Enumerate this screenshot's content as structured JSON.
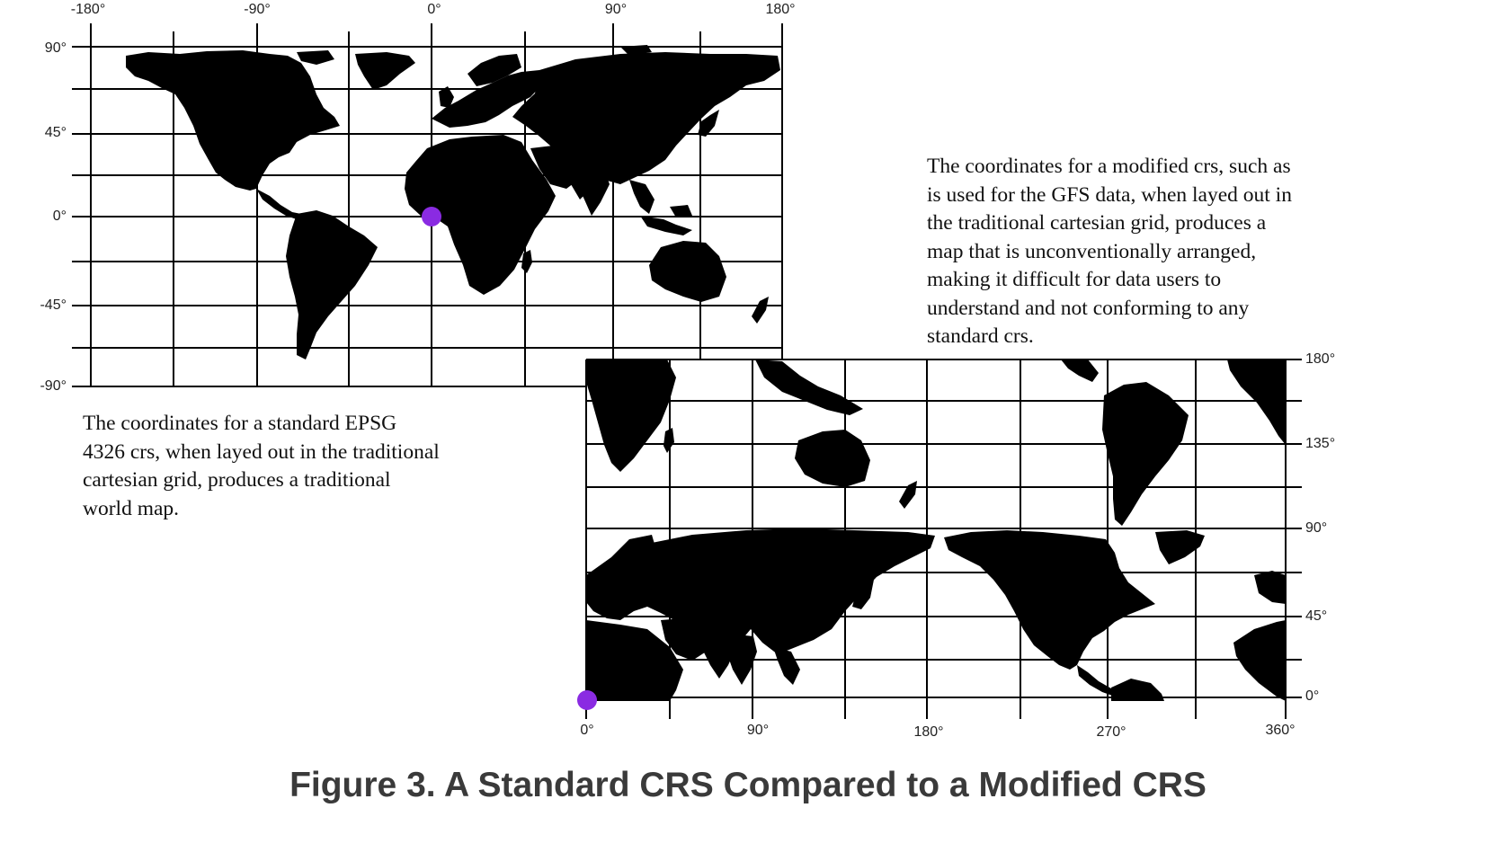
{
  "standard_map": {
    "x_ticks": [
      "-180°",
      "-90°",
      "0°",
      "90°",
      "180°"
    ],
    "y_ticks": [
      "90°",
      "45°",
      "0°",
      "-45°",
      "-90°"
    ],
    "caption": "The coordinates for a standard EPSG 4326 crs, when layed out in the traditional cartesian grid, produces a traditional world map.",
    "origin_marker": {
      "lon": 0,
      "lat": 0,
      "color": "#8a2be2"
    }
  },
  "modified_map": {
    "x_ticks": [
      "0°",
      "90°",
      "180°",
      "270°",
      "360°"
    ],
    "y_ticks": [
      "180°",
      "135°",
      "90°",
      "45°",
      "0°"
    ],
    "caption": "The coordinates for a modified crs, such as is used for the GFS data, when layed out in the traditional cartesian grid, produces a map that is unconventionally arranged, making it difficult for data users to understand and not conforming to any standard crs.",
    "origin_marker": {
      "x": 0,
      "y": 0,
      "color": "#8a2be2"
    }
  },
  "figure_title": "Figure 3. A Standard CRS Compared to a Modified CRS",
  "colors": {
    "land": "#000000",
    "grid": "#000000",
    "marker": "#8a2be2",
    "title": "#3a3a3a"
  }
}
